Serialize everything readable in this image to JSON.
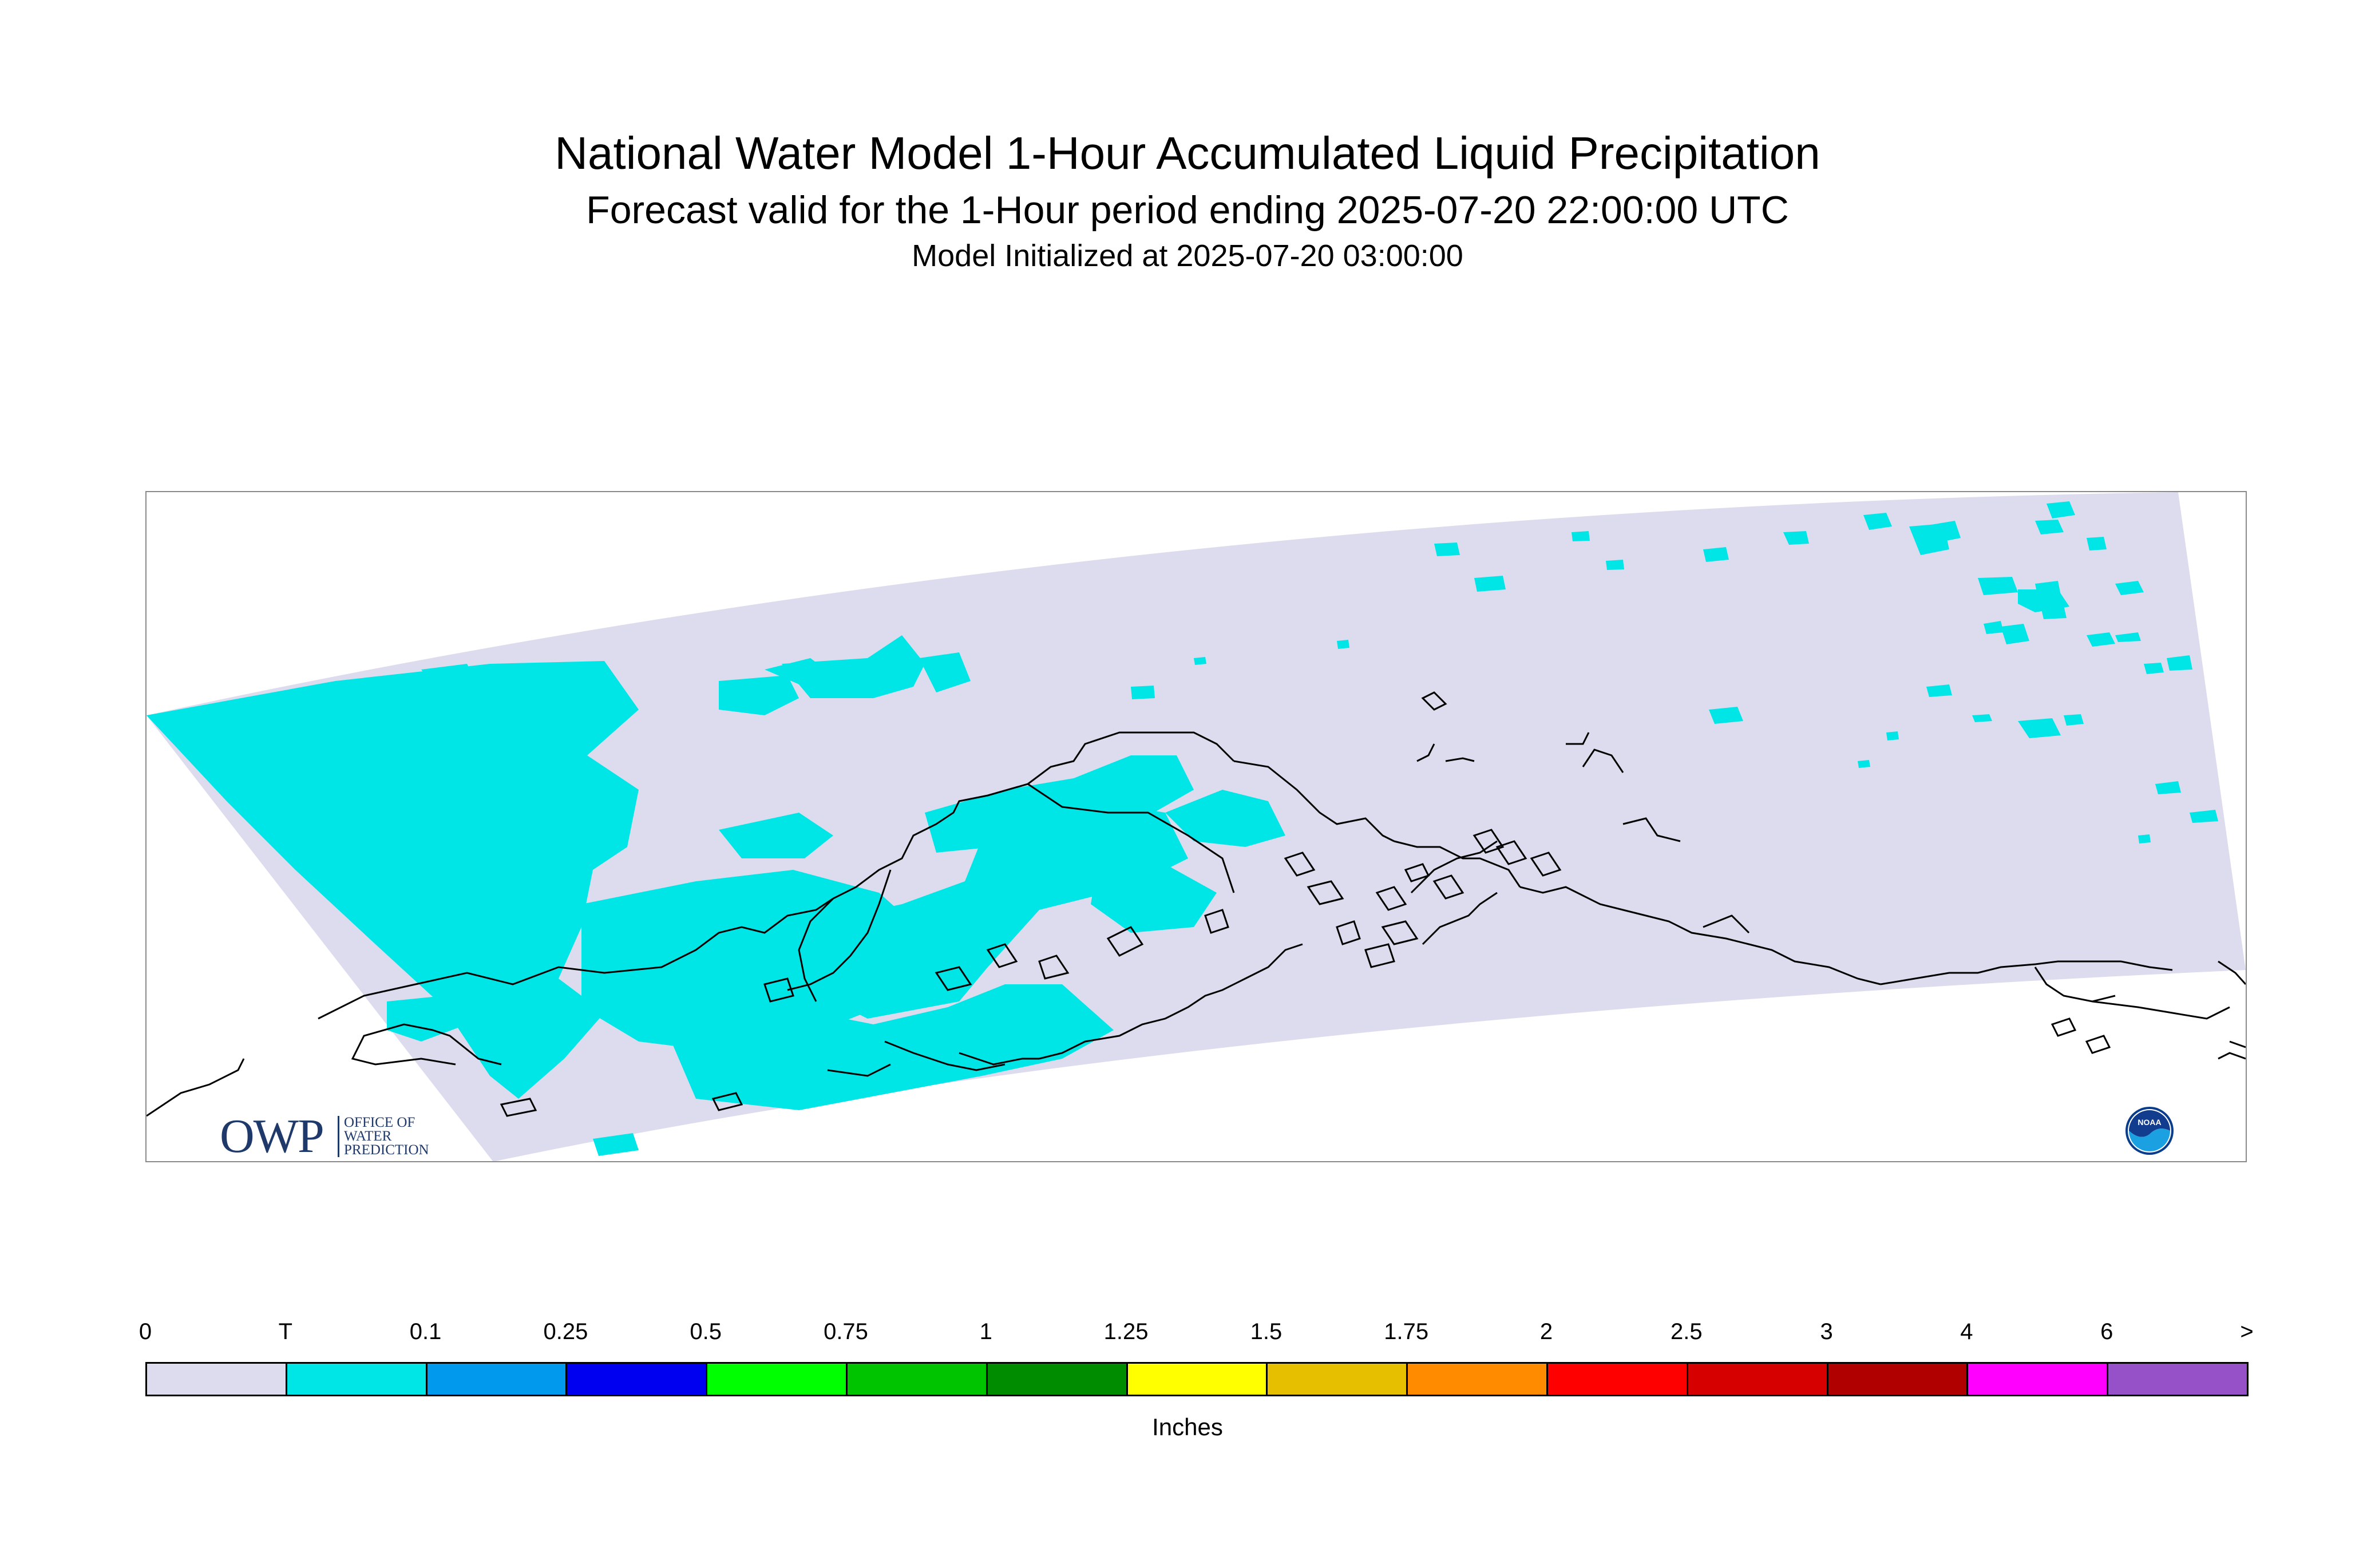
{
  "header": {
    "title": "National Water Model 1-Hour Accumulated Liquid Precipitation",
    "subtitle": "Forecast valid for the 1-Hour period ending 2025-07-20 22:00:00 UTC",
    "initialized": "Model Initialized at 2025-07-20 03:00:00"
  },
  "logos": {
    "owp_mark": "OWP",
    "owp_text": "OFFICE OF\nWATER\nPREDICTION",
    "noaa_text": "NOAA"
  },
  "legend": {
    "labels": [
      "0",
      "T",
      "0.1",
      "0.25",
      "0.5",
      "0.75",
      "1",
      "1.25",
      "1.5",
      "1.75",
      "2",
      "2.5",
      "3",
      "4",
      "6",
      ">"
    ],
    "colors": [
      "#dcdcee",
      "#00e6e6",
      "#0099ee",
      "#0000f0",
      "#00ff00",
      "#00c400",
      "#008c00",
      "#ffff00",
      "#e6c000",
      "#ff8c00",
      "#ff0000",
      "#d70000",
      "#b00000",
      "#ff00ff",
      "#9650c8"
    ],
    "units": "Inches"
  },
  "map": {
    "domain_color": "#dcdcee",
    "trace_color": "#00e6e6",
    "coast_color": "#000000"
  }
}
